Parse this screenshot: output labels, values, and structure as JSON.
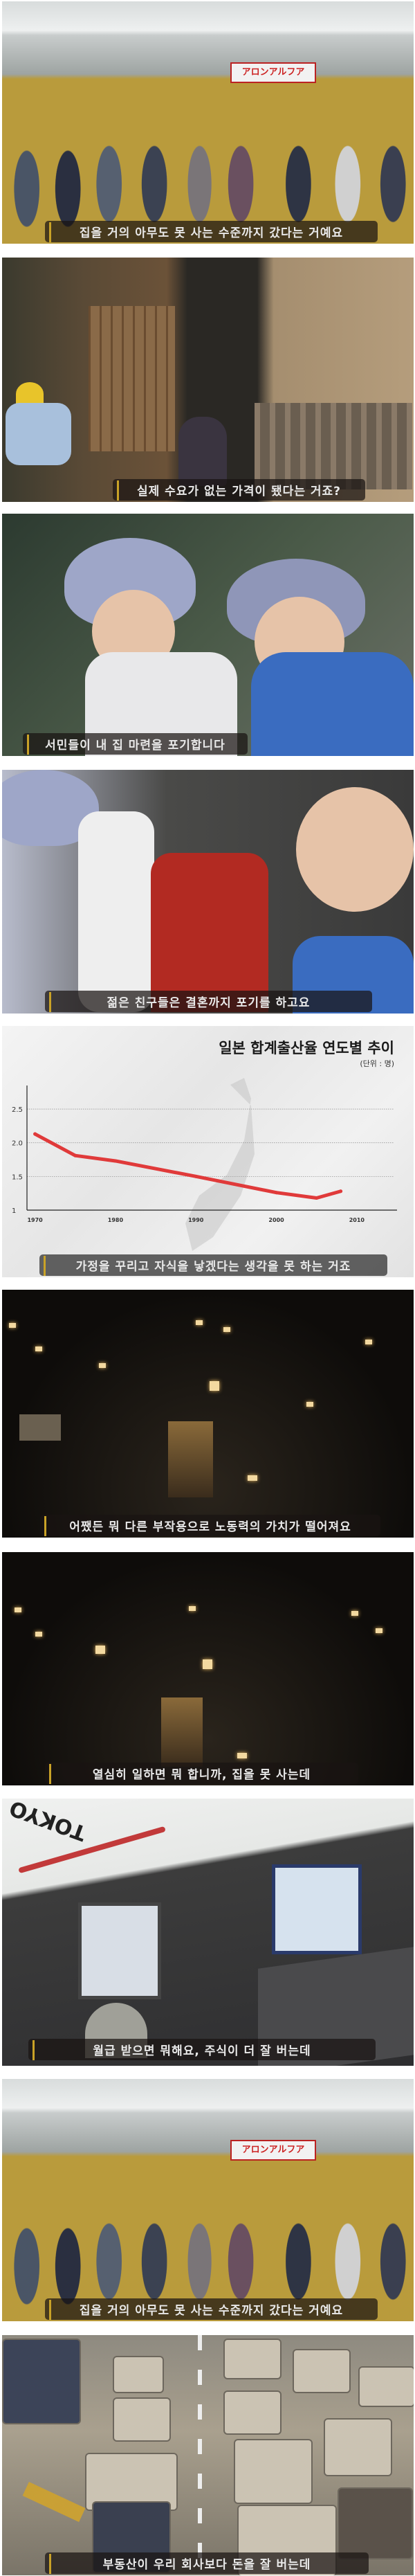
{
  "subtitles": [
    "집을 거의 아무도 못 사는 수준까지 갔다는 거예요",
    "실제 수요가 없는 가격이 됐다는 거죠?",
    "서민들이 내 집 마련을 포기합니다",
    "젊은 친구들은 결혼까지 포기를 하고요",
    "가정을 꾸리고 자식을 낳겠다는 생각을 못 하는 거죠",
    "어쨌든 뭐 다른 부작용으로 노동력의 가치가 떨어져요",
    "열심히 일하면 뭐 합니까, 집을 못 사는데",
    "월급 받으면 뭐해요, 주식이 더 잘 버는데",
    "집을 거의 아무도 못 사는 수준까지 갔다는 거예요",
    "부동산이 우리 회사보다 돈을 잘 버는데"
  ],
  "scene_text": {
    "train_sign": "アロンアルフア",
    "office_sign": "TOKYO"
  },
  "chart_data": {
    "type": "line",
    "title": "일본 합계출산율 연도별 추이",
    "unit": "(단위 : 명)",
    "x": [
      1970,
      1975,
      1980,
      1990,
      2000,
      2005,
      2008
    ],
    "values": [
      2.13,
      1.81,
      1.73,
      1.5,
      1.26,
      1.18,
      1.28
    ],
    "xticks": [
      "1970",
      "1980",
      "1990",
      "2000",
      "2010"
    ],
    "yticks": [
      "1",
      "1.5",
      "2.0",
      "2.5"
    ],
    "xlim": [
      1969,
      2015
    ],
    "ylim": [
      1,
      2.85
    ],
    "grid": true,
    "line_color": "#e03a3a"
  }
}
